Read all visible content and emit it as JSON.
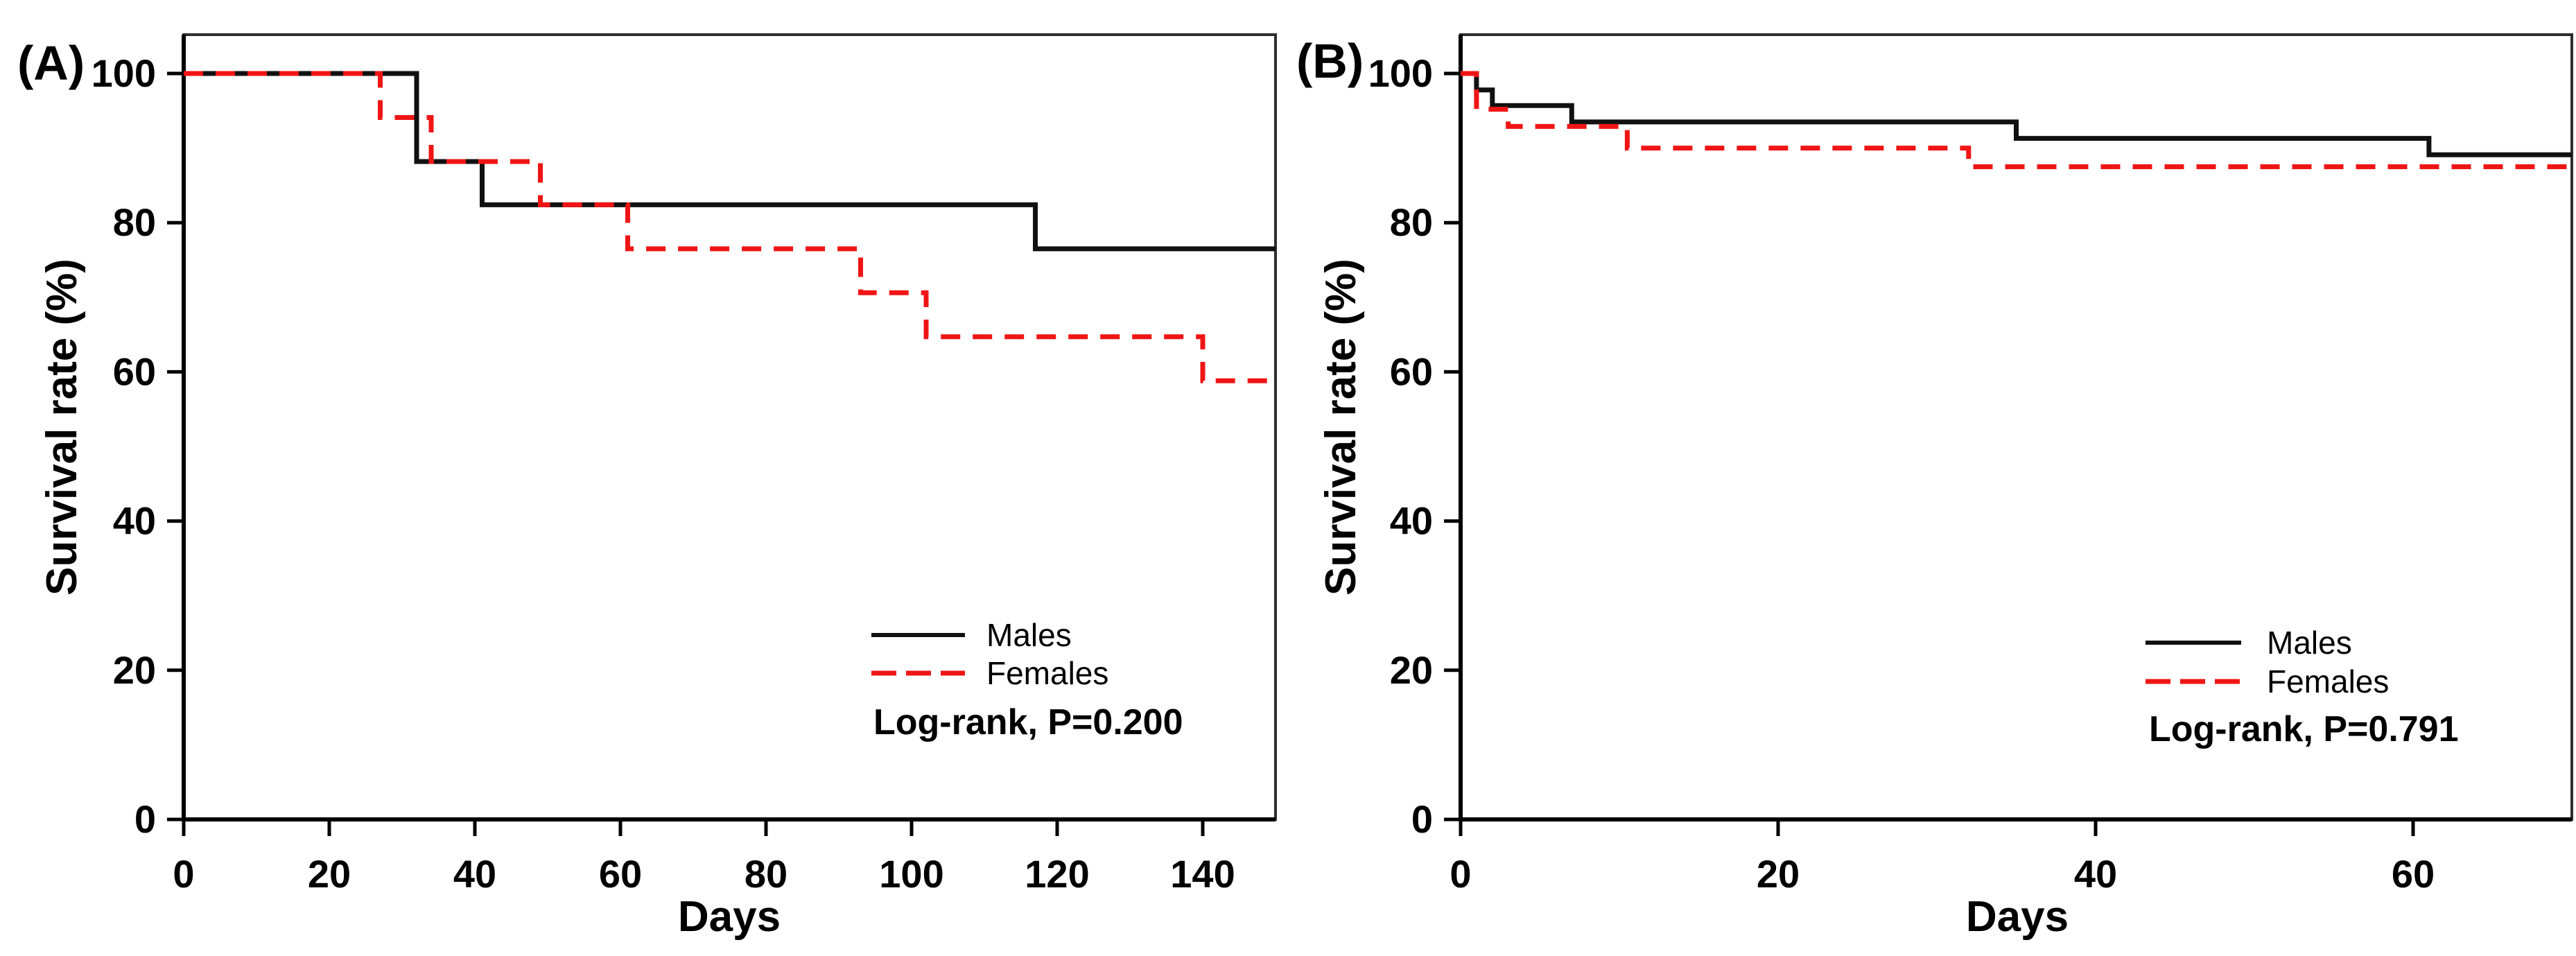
{
  "page": {
    "background": "#ffffff",
    "frame_color": "#2e2e2e",
    "axis_color": "#000000",
    "text_color": "#000000",
    "red": "#f01515",
    "black": "#111111"
  },
  "chart_data": [
    {
      "id": "A",
      "panel_label": "(A)",
      "type": "line",
      "subtype": "kaplan-meier-step",
      "xlabel": "Days",
      "ylabel": "Survival rate (%)",
      "xlim": [
        0,
        150
      ],
      "ylim": [
        0,
        105
      ],
      "xticks": [
        0,
        20,
        40,
        60,
        80,
        100,
        120,
        140
      ],
      "yticks": [
        0,
        20,
        40,
        60,
        80,
        100
      ],
      "grid": false,
      "legend": {
        "position": "lower-right",
        "entries": [
          {
            "label": "Males",
            "color": "#111111",
            "dashed": false
          },
          {
            "label": "Females",
            "color": "#f01515",
            "dashed": true
          }
        ],
        "note": "Log-rank, P=0.200"
      },
      "series": [
        {
          "name": "Males",
          "color": "#111111",
          "dashed": false,
          "points": [
            [
              0,
              100
            ],
            [
              32,
              100
            ],
            [
              32,
              88.2
            ],
            [
              41,
              88.2
            ],
            [
              41,
              82.4
            ],
            [
              117,
              82.4
            ],
            [
              117,
              76.5
            ],
            [
              150,
              76.5
            ]
          ]
        },
        {
          "name": "Females",
          "color": "#f01515",
          "dashed": true,
          "points": [
            [
              0,
              100
            ],
            [
              27,
              100
            ],
            [
              27,
              94.1
            ],
            [
              34,
              94.1
            ],
            [
              34,
              88.2
            ],
            [
              49,
              88.2
            ],
            [
              49,
              82.4
            ],
            [
              61,
              82.4
            ],
            [
              61,
              76.5
            ],
            [
              93,
              76.5
            ],
            [
              93,
              70.6
            ],
            [
              102,
              70.6
            ],
            [
              102,
              64.7
            ],
            [
              140,
              64.7
            ],
            [
              140,
              58.8
            ],
            [
              150,
              58.8
            ]
          ]
        }
      ]
    },
    {
      "id": "B",
      "panel_label": "(B)",
      "type": "line",
      "subtype": "kaplan-meier-step",
      "xlabel": "Days",
      "ylabel": "Survival rate (%)",
      "xlim": [
        0,
        70
      ],
      "ylim": [
        0,
        105
      ],
      "xticks": [
        0,
        20,
        40,
        60
      ],
      "yticks": [
        0,
        20,
        40,
        60,
        80,
        100
      ],
      "grid": false,
      "legend": {
        "position": "lower-right",
        "entries": [
          {
            "label": "Males",
            "color": "#111111",
            "dashed": false
          },
          {
            "label": "Females",
            "color": "#f01515",
            "dashed": true
          }
        ],
        "note": "Log-rank, P=0.791"
      },
      "series": [
        {
          "name": "Males",
          "color": "#111111",
          "dashed": false,
          "points": [
            [
              0,
              100
            ],
            [
              1,
              100
            ],
            [
              1,
              97.8
            ],
            [
              2,
              97.8
            ],
            [
              2,
              95.7
            ],
            [
              7,
              95.7
            ],
            [
              7,
              93.5
            ],
            [
              35,
              93.5
            ],
            [
              35,
              91.3
            ],
            [
              61,
              91.3
            ],
            [
              61,
              89.1
            ],
            [
              70,
              89.1
            ]
          ]
        },
        {
          "name": "Females",
          "color": "#f01515",
          "dashed": true,
          "points": [
            [
              0,
              100
            ],
            [
              1,
              100
            ],
            [
              1,
              95.2
            ],
            [
              3,
              95.2
            ],
            [
              3,
              92.9
            ],
            [
              10.5,
              92.9
            ],
            [
              10.5,
              90.0
            ],
            [
              32,
              90.0
            ],
            [
              32,
              87.5
            ],
            [
              70,
              87.5
            ]
          ]
        }
      ]
    }
  ]
}
